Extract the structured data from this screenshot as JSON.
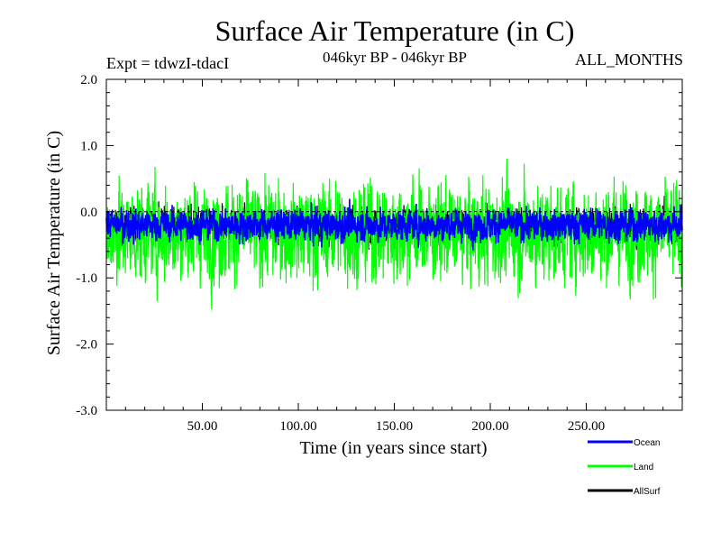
{
  "chart_data": {
    "type": "line",
    "title": "Surface Air Temperature (in C)",
    "subtitle_left": "Expt = tdwzI-tdacI",
    "subtitle_center": "046kyr BP - 046kyr BP",
    "subtitle_right": "ALL_MONTHS",
    "xlabel": "Time (in years since start)",
    "ylabel": "Surface Air Temperature (in C)",
    "xlim": [
      0,
      300
    ],
    "ylim": [
      -3.0,
      2.0
    ],
    "x_ticks": [
      {
        "value": 50,
        "label": "50.00"
      },
      {
        "value": 100,
        "label": "100.00"
      },
      {
        "value": 150,
        "label": "150.00"
      },
      {
        "value": 200,
        "label": "200.00"
      },
      {
        "value": 250,
        "label": "250.00"
      }
    ],
    "y_ticks": [
      {
        "value": 2.0,
        "label": "2.0"
      },
      {
        "value": 1.0,
        "label": "1.0"
      },
      {
        "value": 0.0,
        "label": "0.0"
      },
      {
        "value": -1.0,
        "label": "-1.0"
      },
      {
        "value": -2.0,
        "label": "-2.0"
      },
      {
        "value": -3.0,
        "label": "-3.0"
      }
    ],
    "zero_line": true,
    "legend_position": "bottom-right",
    "series": [
      {
        "name": "Land",
        "color": "#00ff00",
        "mean": -0.3,
        "amplitude": 0.55
      },
      {
        "name": "Ocean",
        "color": "#0000ff",
        "mean": -0.2,
        "amplitude": 0.18
      },
      {
        "name": "AllSurf",
        "color": "#000000",
        "mean": -0.2,
        "amplitude": 0.2
      }
    ],
    "legend": [
      {
        "name": "Ocean",
        "color": "#0000ff"
      },
      {
        "name": "Land",
        "color": "#00ff00"
      },
      {
        "name": "AllSurf",
        "color": "#000000"
      }
    ]
  }
}
